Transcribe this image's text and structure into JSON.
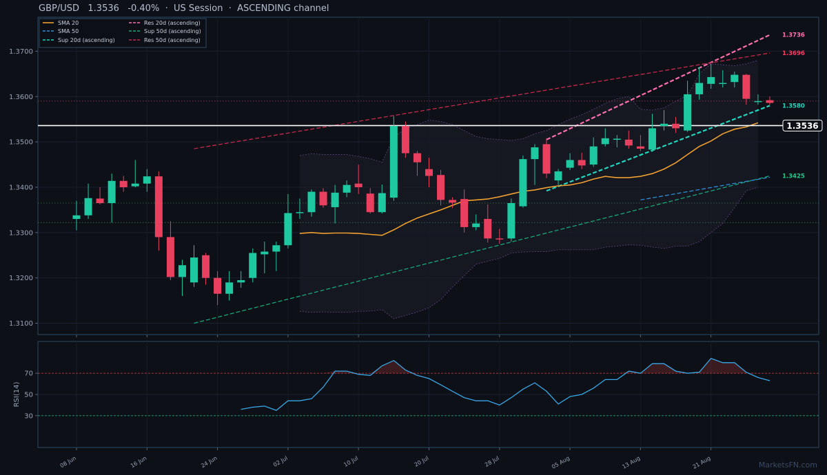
{
  "header": {
    "symbol": "GBP/USD",
    "price": "1.3536",
    "change": "-0.40%",
    "session": "US Session",
    "channel": "ASCENDING channel"
  },
  "watermark": "MarketsFN.com",
  "colors": {
    "background": "#0d1017",
    "up": "#1ec8a0",
    "down": "#e8405e",
    "sma20": "#f0a030",
    "sma50": "#2f8fd8",
    "sup20": "#22d6c0",
    "sup50": "#18a878",
    "res20": "#ff6fb0",
    "res50": "#c8294c",
    "rsi": "#38a8e8",
    "price_line": "#ffffff"
  },
  "chart_data": [
    {
      "type": "candlestick",
      "title": "GBP/USD 1.3536 -0.40% · US Session · ASCENDING channel",
      "ylim": [
        1.3075,
        1.3775
      ],
      "yticks": [
        "1.3100",
        "1.3200",
        "1.3300",
        "1.3400",
        "1.3500",
        "1.3600",
        "1.3700"
      ],
      "x_tick_labels": [
        "08 Jun",
        "16 Jun",
        "24 Jun",
        "02 Jul",
        "10 Jul",
        "20 Jul",
        "28 Jul",
        "05 Aug",
        "13 Aug",
        "21 Aug"
      ],
      "x_tick_index": [
        0,
        6,
        12,
        18,
        24,
        30,
        36,
        42,
        48,
        54
      ],
      "candles": [
        [
          1.333,
          1.337,
          1.3305,
          1.3338
        ],
        [
          1.3338,
          1.3408,
          1.333,
          1.3376
        ],
        [
          1.3375,
          1.34,
          1.3362,
          1.3365
        ],
        [
          1.3365,
          1.343,
          1.3322,
          1.3414
        ],
        [
          1.3414,
          1.3425,
          1.339,
          1.34
        ],
        [
          1.3402,
          1.346,
          1.34,
          1.3408
        ],
        [
          1.3408,
          1.344,
          1.339,
          1.3424
        ],
        [
          1.3424,
          1.3435,
          1.326,
          1.329
        ],
        [
          1.329,
          1.3325,
          1.3195,
          1.3202
        ],
        [
          1.3202,
          1.324,
          1.316,
          1.3228
        ],
        [
          1.319,
          1.3272,
          1.318,
          1.3245
        ],
        [
          1.325,
          1.3255,
          1.3185,
          1.32
        ],
        [
          1.32,
          1.3215,
          1.314,
          1.3165
        ],
        [
          1.3165,
          1.3215,
          1.315,
          1.319
        ],
        [
          1.319,
          1.3215,
          1.3178,
          1.3195
        ],
        [
          1.32,
          1.3265,
          1.319,
          1.3255
        ],
        [
          1.3252,
          1.328,
          1.321,
          1.3258
        ],
        [
          1.3258,
          1.328,
          1.3215,
          1.3272
        ],
        [
          1.3272,
          1.3385,
          1.3265,
          1.3343
        ],
        [
          1.3343,
          1.3375,
          1.333,
          1.3345
        ],
        [
          1.3345,
          1.3395,
          1.3335,
          1.339
        ],
        [
          1.339,
          1.3398,
          1.3355,
          1.336
        ],
        [
          1.3356,
          1.3405,
          1.332,
          1.3388
        ],
        [
          1.3388,
          1.3415,
          1.3378,
          1.3405
        ],
        [
          1.3408,
          1.345,
          1.3385,
          1.34
        ],
        [
          1.3386,
          1.3398,
          1.3342,
          1.3345
        ],
        [
          1.3345,
          1.3406,
          1.3342,
          1.3387
        ],
        [
          1.3377,
          1.3557,
          1.337,
          1.3535
        ],
        [
          1.3535,
          1.3545,
          1.3465,
          1.3475
        ],
        [
          1.3475,
          1.348,
          1.3425,
          1.3455
        ],
        [
          1.344,
          1.3465,
          1.34,
          1.3425
        ],
        [
          1.3427,
          1.3438,
          1.336,
          1.3372
        ],
        [
          1.3372,
          1.3378,
          1.3354,
          1.3366
        ],
        [
          1.3374,
          1.3395,
          1.33,
          1.3312
        ],
        [
          1.3312,
          1.334,
          1.3305,
          1.332
        ],
        [
          1.333,
          1.3362,
          1.3278,
          1.3287
        ],
        [
          1.3287,
          1.3308,
          1.3275,
          1.3285
        ],
        [
          1.3287,
          1.3375,
          1.328,
          1.3365
        ],
        [
          1.3358,
          1.347,
          1.3355,
          1.3462
        ],
        [
          1.3462,
          1.3495,
          1.3405,
          1.3488
        ],
        [
          1.3495,
          1.3508,
          1.342,
          1.343
        ],
        [
          1.3415,
          1.344,
          1.3405,
          1.3435
        ],
        [
          1.3443,
          1.3475,
          1.3438,
          1.346
        ],
        [
          1.346,
          1.3476,
          1.344,
          1.3448
        ],
        [
          1.345,
          1.351,
          1.3445,
          1.349
        ],
        [
          1.3495,
          1.353,
          1.349,
          1.3508
        ],
        [
          1.3505,
          1.3515,
          1.3488,
          1.3507
        ],
        [
          1.3505,
          1.3525,
          1.3485,
          1.3492
        ],
        [
          1.349,
          1.3515,
          1.348,
          1.3485
        ],
        [
          1.3483,
          1.3562,
          1.3478,
          1.353
        ],
        [
          1.3535,
          1.357,
          1.3525,
          1.354
        ],
        [
          1.354,
          1.3555,
          1.352,
          1.353
        ],
        [
          1.3525,
          1.3635,
          1.3522,
          1.3605
        ],
        [
          1.3605,
          1.3665,
          1.3593,
          1.363
        ],
        [
          1.3628,
          1.3672,
          1.3617,
          1.3643
        ],
        [
          1.3628,
          1.3658,
          1.362,
          1.363
        ],
        [
          1.3632,
          1.3655,
          1.362,
          1.3648
        ],
        [
          1.3648,
          1.365,
          1.3582,
          1.3595
        ],
        [
          1.359,
          1.3605,
          1.3582,
          1.359
        ],
        [
          1.3592,
          1.36,
          1.3582,
          1.3586
        ]
      ],
      "sma20": {
        "start": 19,
        "values": [
          1.3298,
          1.33,
          1.3298,
          1.3299,
          1.3299,
          1.3298,
          1.3296,
          1.3294,
          1.3306,
          1.332,
          1.3332,
          1.3341,
          1.335,
          1.336,
          1.337,
          1.3372,
          1.3374,
          1.3379,
          1.3385,
          1.3391,
          1.3394,
          1.3399,
          1.3403,
          1.3405,
          1.341,
          1.3418,
          1.3424,
          1.3421,
          1.3421,
          1.3424,
          1.343,
          1.344,
          1.3454,
          1.3472,
          1.349,
          1.3502,
          1.3518,
          1.3528,
          1.3533,
          1.3542
        ]
      },
      "bollinger": {
        "start": 19,
        "upper": [
          1.347,
          1.3474,
          1.3472,
          1.3472,
          1.3472,
          1.3468,
          1.3463,
          1.3455,
          1.351,
          1.353,
          1.3538,
          1.3548,
          1.3545,
          1.3538,
          1.3525,
          1.3512,
          1.3507,
          1.3505,
          1.3503,
          1.3507,
          1.3518,
          1.3525,
          1.3538,
          1.355,
          1.356,
          1.3572,
          1.3585,
          1.3595,
          1.36,
          1.3572,
          1.357,
          1.3575,
          1.359,
          1.3602,
          1.365,
          1.3672,
          1.367,
          1.3668,
          1.3672,
          1.368
        ],
        "lower": [
          1.3126,
          1.3124,
          1.3125,
          1.3124,
          1.3124,
          1.3126,
          1.3127,
          1.313,
          1.311,
          1.3117,
          1.3125,
          1.3134,
          1.3152,
          1.318,
          1.3205,
          1.323,
          1.3237,
          1.3243,
          1.3255,
          1.3257,
          1.3258,
          1.3258,
          1.3262,
          1.3262,
          1.3262,
          1.3262,
          1.3268,
          1.327,
          1.3273,
          1.3272,
          1.3268,
          1.3265,
          1.327,
          1.327,
          1.328,
          1.33,
          1.332,
          1.3355,
          1.3392,
          1.34
        ]
      },
      "trendlines": [
        {
          "name": "Sup 20d (ascending)",
          "x0": 40,
          "y0": 1.3392,
          "x1": 59,
          "y1": 1.358,
          "color": "#22d6c0",
          "width": 2.2
        },
        {
          "name": "Res 20d (ascending)",
          "x0": 40,
          "y0": 1.3505,
          "x1": 59,
          "y1": 1.3736,
          "color": "#ff6fb0",
          "width": 2.2
        },
        {
          "name": "Sup 50d (ascending)",
          "x0": 10,
          "y0": 1.31,
          "x1": 59,
          "y1": 1.3425,
          "color": "#18a878",
          "width": 1.3
        },
        {
          "name": "Res 50d (ascending)",
          "x0": 10,
          "y0": 1.3485,
          "x1": 59,
          "y1": 1.3696,
          "color": "#c8294c",
          "width": 1.3
        },
        {
          "name": "SMA 50",
          "x0": 48,
          "y0": 1.3372,
          "x1": 59,
          "y1": 1.3422,
          "color": "#2f8fd8",
          "width": 1.3
        }
      ],
      "horizontal_levels": [
        {
          "value": 1.359,
          "color": "#c8294c"
        },
        {
          "value": 1.3365,
          "color": "#2f8a40"
        },
        {
          "value": 1.3322,
          "color": "#2f8a40"
        }
      ],
      "current_price": {
        "value": 1.3536,
        "label": "1.3536"
      },
      "right_labels": [
        {
          "text": "1.3736",
          "value": 1.3736,
          "color": "#ff6fb0"
        },
        {
          "text": "1.3696",
          "value": 1.3696,
          "color": "#ff3a66"
        },
        {
          "text": "1.3580",
          "value": 1.358,
          "color": "#22d6c0"
        },
        {
          "text": "1.3425",
          "value": 1.3425,
          "color": "#1ec88a"
        }
      ],
      "legend": [
        {
          "label": "SMA 20",
          "color": "#f0a030",
          "dash": "solid"
        },
        {
          "label": "SMA 50",
          "color": "#2f8fd8",
          "dash": "dashed"
        },
        {
          "label": "Sup 20d (ascending)",
          "color": "#22d6c0",
          "dash": "dashed"
        },
        {
          "label": "Res 20d (ascending)",
          "color": "#ff6fb0",
          "dash": "dashed"
        },
        {
          "label": "Sup 50d (ascending)",
          "color": "#18a878",
          "dash": "dashed"
        },
        {
          "label": "Res 50d (ascending)",
          "color": "#c8294c",
          "dash": "dashed"
        }
      ]
    },
    {
      "type": "line",
      "ylabel": "RSI(14)",
      "ylim": [
        0,
        100
      ],
      "yticks": [
        "30",
        "50",
        "70"
      ],
      "levels": [
        70,
        30
      ],
      "rsi_start": 14,
      "values": [
        36,
        38,
        39,
        35,
        44,
        44,
        46,
        57,
        72,
        72,
        69,
        68,
        77,
        82,
        73,
        68,
        65,
        59,
        53,
        47,
        44,
        44,
        40,
        47,
        55,
        61,
        53,
        41,
        48,
        50,
        56,
        64,
        64,
        72,
        70,
        79,
        79,
        72,
        70,
        71,
        84,
        80,
        80,
        71,
        66,
        63
      ]
    }
  ]
}
